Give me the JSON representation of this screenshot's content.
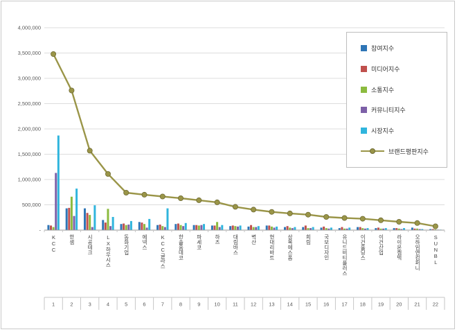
{
  "chart_data": {
    "type": "bar",
    "title": "",
    "grid": true,
    "legend_position": "top-right",
    "ylim": [
      0,
      4000000
    ],
    "ytick_step": 500000,
    "ytick_labels": [
      "-",
      "500,000",
      "1,000,000",
      "1,500,000",
      "2,000,000",
      "2,500,000",
      "3,000,000",
      "3,500,000",
      "4,000,000"
    ],
    "categories": [
      "KCC",
      "한샘",
      "시공테크",
      "LX하우시스",
      "동화기업",
      "에넥스",
      "KCC글라스",
      "한솔홈데코",
      "파세코",
      "하츠",
      "대림바스",
      "벽산",
      "현대리바트",
      "삼목에스폼",
      "희림",
      "국보디자인",
      "유니드비티플러스",
      "이건홀딩스",
      "이건산업",
      "라이온켐텍",
      "오하임앤컴퍼니",
      "SUNBL"
    ],
    "index_labels": [
      "1",
      "2",
      "3",
      "4",
      "5",
      "6",
      "7",
      "8",
      "9",
      "10",
      "11",
      "12",
      "13",
      "14",
      "15",
      "16",
      "17",
      "18",
      "19",
      "20",
      "21",
      "22"
    ],
    "series": [
      {
        "name": "참여지수",
        "type": "bar",
        "color": "#2E75B6",
        "values": [
          100000,
          430000,
          430000,
          200000,
          120000,
          160000,
          100000,
          120000,
          100000,
          90000,
          80000,
          70000,
          90000,
          60000,
          60000,
          50000,
          40000,
          60000,
          40000,
          40000,
          50000,
          20000
        ]
      },
      {
        "name": "미디어지수",
        "type": "bar",
        "color": "#C0504D",
        "values": [
          90000,
          440000,
          340000,
          150000,
          130000,
          150000,
          110000,
          130000,
          100000,
          90000,
          90000,
          100000,
          90000,
          80000,
          90000,
          70000,
          60000,
          60000,
          50000,
          40000,
          30000,
          20000
        ]
      },
      {
        "name": "소통지수",
        "type": "bar",
        "color": "#8CBB3F",
        "values": [
          60000,
          660000,
          300000,
          420000,
          100000,
          120000,
          80000,
          100000,
          90000,
          160000,
          80000,
          60000,
          70000,
          50000,
          40000,
          40000,
          30000,
          40000,
          30000,
          30000,
          30000,
          15000
        ]
      },
      {
        "name": "커뮤니티지수",
        "type": "bar",
        "color": "#7D60A8",
        "values": [
          1130000,
          280000,
          60000,
          80000,
          110000,
          50000,
          60000,
          80000,
          100000,
          60000,
          70000,
          60000,
          50000,
          40000,
          40000,
          30000,
          30000,
          30000,
          30000,
          20000,
          20000,
          10000
        ]
      },
      {
        "name": "시장지수",
        "type": "bar",
        "color": "#30B5DD",
        "values": [
          1870000,
          820000,
          490000,
          260000,
          180000,
          220000,
          430000,
          140000,
          120000,
          100000,
          90000,
          80000,
          70000,
          60000,
          60000,
          50000,
          50000,
          40000,
          40000,
          40000,
          20000,
          10000
        ]
      },
      {
        "name": "브랜드평판지수",
        "type": "line",
        "color": "#9A9548",
        "marker_stroke": "#6E6A33",
        "values": [
          3480000,
          2760000,
          1570000,
          1110000,
          740000,
          700000,
          665000,
          630000,
          590000,
          550000,
          460000,
          405000,
          360000,
          330000,
          305000,
          260000,
          240000,
          225000,
          195000,
          165000,
          140000,
          75000
        ]
      }
    ],
    "colors": {
      "frame_border": "#C9C9C9",
      "gridline": "#DCDCDC",
      "axis_line": "#9A9A9A",
      "tick_line": "#C6C6C6",
      "tick_text": "#595959",
      "category_text": "#404040",
      "legend_border": "#BDBDBD"
    }
  }
}
